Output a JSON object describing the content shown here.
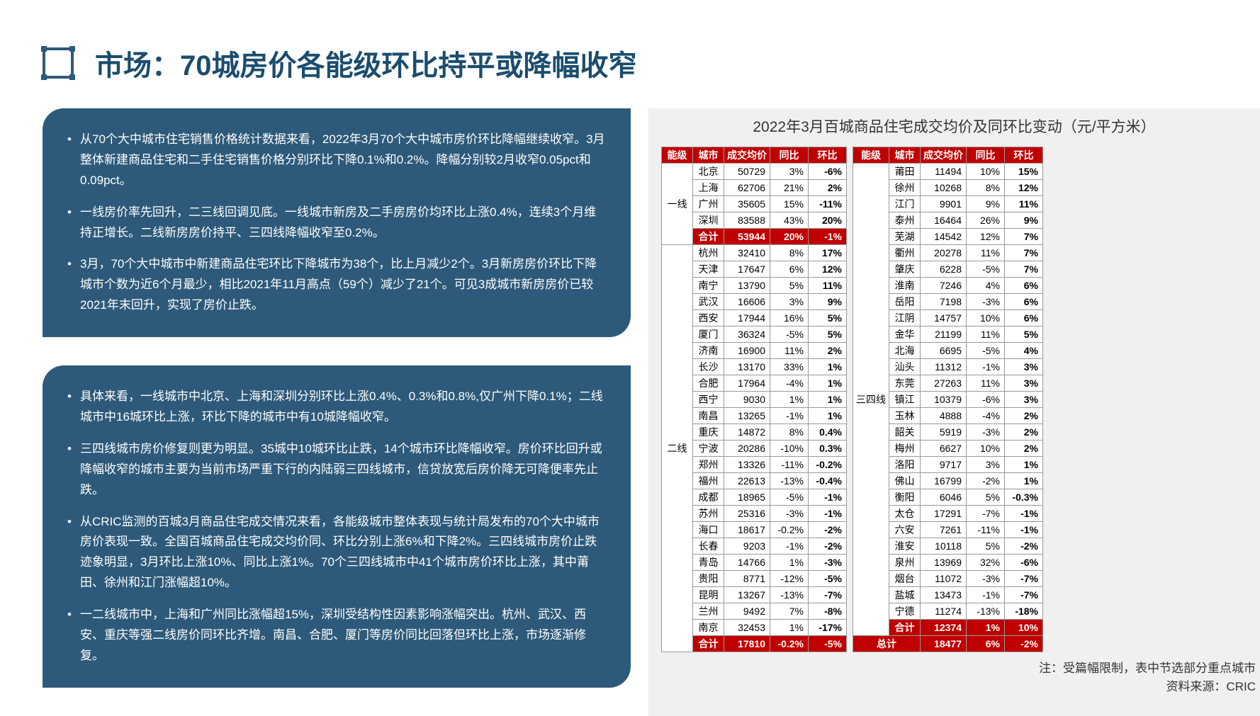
{
  "title": "市场：70城房价各能级环比持平或降幅收窄",
  "box1": {
    "items": [
      "从70个大中城市住宅销售价格统计数据来看，2022年3月70个大中城市房价环比降幅继续收窄。3月整体新建商品住宅和二手住宅销售价格分别环比下降0.1%和0.2%。降幅分别较2月收窄0.05pct和0.09pct。",
      "一线房价率先回升，二三线回调见底。一线城市新房及二手房房价均环比上涨0.4%，连续3个月维持正增长。二线新房房价持平、三四线降幅收窄至0.2%。",
      "3月，70个大中城市中新建商品住宅环比下降城市为38个，比上月减少2个。3月新房房价环比下降城市个数为近6个月最少，相比2021年11月高点（59个）减少了21个。可见3成城市新房房价已较2021年末回升，实现了房价止跌。"
    ]
  },
  "box2": {
    "items": [
      "具体来看，一线城市中北京、上海和深圳分别环比上涨0.4%、0.3%和0.8%,仅广州下降0.1%；二线城市中16城环比上涨，环比下降的城市中有10城降幅收窄。",
      "三四线城市房价修复则更为明显。35城中10城环比止跌，14个城市环比降幅收窄。房价环比回升或降幅收窄的城市主要为当前市场严重下行的内陆弱三四线城市，信贷放宽后房价降无可降便率先止跌。",
      "从CRIC监测的百城3月商品住宅成交情况来看，各能级城市整体表现与统计局发布的70个大中城市房价表现一致。全国百城商品住宅成交均价同、环比分别上涨6%和下降2%。三四线城市房价止跌迹象明显，3月环比上涨10%、同比上涨1%。70个三四线城市中41个城市房价环比上涨，其中莆田、徐州和江门涨幅超10%。",
      "一二线城市中，上海和广州同比涨幅超15%，深圳受结构性因素影响涨幅突出。杭州、武汉、西安、重庆等强二线房价同环比齐增。南昌、合肥、厦门等房价同比回落但环比上涨，市场逐渐修复。"
    ]
  },
  "chart_title": "2022年3月百城商品住宅成交均价及同环比变动（元/平方米）",
  "headers": [
    "能级",
    "城市",
    "成交均价",
    "同比",
    "环比"
  ],
  "tableA": {
    "tier1": {
      "name": "一线",
      "rows": [
        {
          "city": "北京",
          "price": "50729",
          "yoy": "3%",
          "mom": "-6%"
        },
        {
          "city": "上海",
          "price": "62706",
          "yoy": "21%",
          "mom": "2%"
        },
        {
          "city": "广州",
          "price": "35605",
          "yoy": "15%",
          "mom": "-11%"
        },
        {
          "city": "深圳",
          "price": "83588",
          "yoy": "43%",
          "mom": "20%"
        }
      ],
      "total": {
        "city": "合计",
        "price": "53944",
        "yoy": "20%",
        "mom": "-1%"
      }
    },
    "tier2": {
      "name": "二线",
      "rows": [
        {
          "city": "杭州",
          "price": "32410",
          "yoy": "8%",
          "mom": "17%"
        },
        {
          "city": "天津",
          "price": "17647",
          "yoy": "6%",
          "mom": "12%"
        },
        {
          "city": "南宁",
          "price": "13790",
          "yoy": "5%",
          "mom": "11%"
        },
        {
          "city": "武汉",
          "price": "16606",
          "yoy": "3%",
          "mom": "9%"
        },
        {
          "city": "西安",
          "price": "17944",
          "yoy": "16%",
          "mom": "5%"
        },
        {
          "city": "厦门",
          "price": "36324",
          "yoy": "-5%",
          "mom": "5%"
        },
        {
          "city": "济南",
          "price": "16900",
          "yoy": "11%",
          "mom": "2%"
        },
        {
          "city": "长沙",
          "price": "13170",
          "yoy": "33%",
          "mom": "1%"
        },
        {
          "city": "合肥",
          "price": "17964",
          "yoy": "-4%",
          "mom": "1%"
        },
        {
          "city": "西宁",
          "price": "9030",
          "yoy": "1%",
          "mom": "1%"
        },
        {
          "city": "南昌",
          "price": "13265",
          "yoy": "-1%",
          "mom": "1%"
        },
        {
          "city": "重庆",
          "price": "14872",
          "yoy": "8%",
          "mom": "0.4%"
        },
        {
          "city": "宁波",
          "price": "20286",
          "yoy": "-10%",
          "mom": "0.3%"
        },
        {
          "city": "郑州",
          "price": "13326",
          "yoy": "-11%",
          "mom": "-0.2%"
        },
        {
          "city": "福州",
          "price": "22613",
          "yoy": "-13%",
          "mom": "-0.4%"
        },
        {
          "city": "成都",
          "price": "18965",
          "yoy": "-5%",
          "mom": "-1%"
        },
        {
          "city": "苏州",
          "price": "25316",
          "yoy": "-3%",
          "mom": "-1%"
        },
        {
          "city": "海口",
          "price": "18617",
          "yoy": "-0.2%",
          "mom": "-2%"
        },
        {
          "city": "长春",
          "price": "9203",
          "yoy": "-1%",
          "mom": "-2%"
        },
        {
          "city": "青岛",
          "price": "14766",
          "yoy": "1%",
          "mom": "-3%"
        },
        {
          "city": "贵阳",
          "price": "8771",
          "yoy": "-12%",
          "mom": "-5%"
        },
        {
          "city": "昆明",
          "price": "13267",
          "yoy": "-13%",
          "mom": "-7%"
        },
        {
          "city": "兰州",
          "price": "9492",
          "yoy": "7%",
          "mom": "-8%"
        },
        {
          "city": "南京",
          "price": "32453",
          "yoy": "1%",
          "mom": "-17%"
        }
      ],
      "total": {
        "city": "合计",
        "price": "17810",
        "yoy": "-0.2%",
        "mom": "-5%"
      }
    }
  },
  "tableB": {
    "tier34": {
      "name": "三四线",
      "rows": [
        {
          "city": "莆田",
          "price": "11494",
          "yoy": "10%",
          "mom": "15%"
        },
        {
          "city": "徐州",
          "price": "10268",
          "yoy": "8%",
          "mom": "12%"
        },
        {
          "city": "江门",
          "price": "9901",
          "yoy": "9%",
          "mom": "11%"
        },
        {
          "city": "泰州",
          "price": "16464",
          "yoy": "26%",
          "mom": "9%"
        },
        {
          "city": "芜湖",
          "price": "14542",
          "yoy": "12%",
          "mom": "7%"
        },
        {
          "city": "衢州",
          "price": "20278",
          "yoy": "11%",
          "mom": "7%"
        },
        {
          "city": "肇庆",
          "price": "6228",
          "yoy": "-5%",
          "mom": "7%"
        },
        {
          "city": "淮南",
          "price": "7246",
          "yoy": "4%",
          "mom": "6%"
        },
        {
          "city": "岳阳",
          "price": "7198",
          "yoy": "-3%",
          "mom": "6%"
        },
        {
          "city": "江阴",
          "price": "14757",
          "yoy": "10%",
          "mom": "6%"
        },
        {
          "city": "金华",
          "price": "21199",
          "yoy": "11%",
          "mom": "5%"
        },
        {
          "city": "北海",
          "price": "6695",
          "yoy": "-5%",
          "mom": "4%"
        },
        {
          "city": "汕头",
          "price": "11312",
          "yoy": "-1%",
          "mom": "3%"
        },
        {
          "city": "东莞",
          "price": "27263",
          "yoy": "11%",
          "mom": "3%"
        },
        {
          "city": "镇江",
          "price": "10379",
          "yoy": "-6%",
          "mom": "3%"
        },
        {
          "city": "玉林",
          "price": "4888",
          "yoy": "-4%",
          "mom": "2%"
        },
        {
          "city": "韶关",
          "price": "5919",
          "yoy": "-3%",
          "mom": "2%"
        },
        {
          "city": "梅州",
          "price": "6627",
          "yoy": "10%",
          "mom": "2%"
        },
        {
          "city": "洛阳",
          "price": "9717",
          "yoy": "3%",
          "mom": "1%"
        },
        {
          "city": "佛山",
          "price": "16799",
          "yoy": "-2%",
          "mom": "1%"
        },
        {
          "city": "衡阳",
          "price": "6046",
          "yoy": "5%",
          "mom": "-0.3%"
        },
        {
          "city": "太仓",
          "price": "17291",
          "yoy": "-7%",
          "mom": "-1%"
        },
        {
          "city": "六安",
          "price": "7261",
          "yoy": "-11%",
          "mom": "-1%"
        },
        {
          "city": "淮安",
          "price": "10118",
          "yoy": "5%",
          "mom": "-2%"
        },
        {
          "city": "泉州",
          "price": "13969",
          "yoy": "32%",
          "mom": "-6%"
        },
        {
          "city": "烟台",
          "price": "11072",
          "yoy": "-3%",
          "mom": "-7%"
        },
        {
          "city": "盐城",
          "price": "13473",
          "yoy": "-1%",
          "mom": "-7%"
        },
        {
          "city": "宁德",
          "price": "11274",
          "yoy": "-13%",
          "mom": "-18%"
        }
      ],
      "total": {
        "city": "合计",
        "price": "12374",
        "yoy": "1%",
        "mom": "10%"
      },
      "grand": {
        "label": "总计",
        "price": "18477",
        "yoy": "6%",
        "mom": "-2%"
      }
    }
  },
  "note1": "注：受篇幅限制，表中节选部分重点城市",
  "note2": "资料来源：CRIC",
  "colors": {
    "box_bg": "#2d5a7a",
    "header_bg": "#c00000",
    "title_color": "#1a4d6e",
    "right_bg": "#f0f0f0"
  }
}
